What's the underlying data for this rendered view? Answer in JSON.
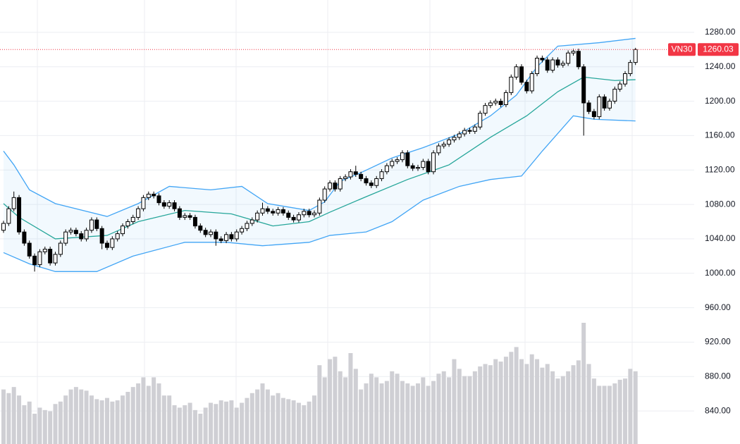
{
  "chart_data": {
    "type": "candlestick",
    "ylim": [
      801.6,
      1317.6
    ],
    "yticks": [
      {
        "value": 840,
        "label": "840.00"
      },
      {
        "value": 880,
        "label": "880.00"
      },
      {
        "value": 920,
        "label": "920.00"
      },
      {
        "value": 960,
        "label": "960.00"
      },
      {
        "value": 1000,
        "label": "1000.00"
      },
      {
        "value": 1040,
        "label": "1040.00"
      },
      {
        "value": 1080,
        "label": "1080.00"
      },
      {
        "value": 1120,
        "label": "1120.00"
      },
      {
        "value": 1160,
        "label": "1160.00"
      },
      {
        "value": 1200,
        "label": "1200.00"
      },
      {
        "value": 1240,
        "label": "1240.00"
      },
      {
        "value": 1280,
        "label": "1280.00"
      }
    ],
    "grid": true,
    "open": [
      1050,
      1058,
      1075,
      1088,
      1048,
      1035,
      1020,
      1010,
      1025,
      1028,
      1012,
      1022,
      1035,
      1048,
      1050,
      1046,
      1040,
      1050,
      1062,
      1052,
      1035,
      1030,
      1040,
      1046,
      1055,
      1060,
      1065,
      1075,
      1088,
      1092,
      1090,
      1082,
      1078,
      1082,
      1075,
      1065,
      1067,
      1065,
      1055,
      1050,
      1045,
      1048,
      1040,
      1038,
      1045,
      1040,
      1048,
      1052,
      1058,
      1062,
      1070,
      1075,
      1072,
      1070,
      1074,
      1070,
      1065,
      1062,
      1068,
      1072,
      1068,
      1070,
      1085,
      1098,
      1105,
      1098,
      1110,
      1112,
      1118,
      1115,
      1110,
      1105,
      1102,
      1110,
      1118,
      1125,
      1130,
      1132,
      1140,
      1125,
      1122,
      1123,
      1130,
      1118,
      1140,
      1148,
      1150,
      1155,
      1158,
      1162,
      1166,
      1165,
      1170,
      1186,
      1195,
      1198,
      1200,
      1196,
      1210,
      1228,
      1240,
      1222,
      1212,
      1232,
      1250,
      1248,
      1236,
      1248,
      1242,
      1244,
      1256,
      1258,
      1240,
      1198,
      1188,
      1182,
      1205,
      1192,
      1200,
      1214,
      1220,
      1232,
      1245
    ],
    "high": [
      1061,
      1078,
      1095,
      1091,
      1051,
      1038,
      1023,
      1028,
      1031,
      1031,
      1025,
      1038,
      1051,
      1053,
      1053,
      1049,
      1053,
      1065,
      1065,
      1055,
      1038,
      1043,
      1049,
      1058,
      1063,
      1068,
      1078,
      1091,
      1095,
      1095,
      1093,
      1085,
      1085,
      1085,
      1078,
      1070,
      1070,
      1068,
      1058,
      1053,
      1051,
      1051,
      1043,
      1048,
      1048,
      1051,
      1055,
      1061,
      1065,
      1073,
      1082,
      1078,
      1075,
      1077,
      1077,
      1073,
      1068,
      1071,
      1075,
      1075,
      1073,
      1088,
      1101,
      1108,
      1108,
      1113,
      1115,
      1121,
      1125,
      1118,
      1113,
      1108,
      1113,
      1121,
      1128,
      1133,
      1135,
      1143,
      1143,
      1128,
      1126,
      1133,
      1133,
      1143,
      1151,
      1153,
      1158,
      1161,
      1165,
      1169,
      1169,
      1173,
      1189,
      1198,
      1201,
      1203,
      1203,
      1213,
      1231,
      1243,
      1243,
      1225,
      1235,
      1253,
      1253,
      1251,
      1251,
      1251,
      1247,
      1259,
      1261,
      1261,
      1243,
      1201,
      1191,
      1208,
      1208,
      1203,
      1217,
      1223,
      1235,
      1248,
      1262
    ],
    "low": [
      1047,
      1055,
      1072,
      1045,
      1032,
      1017,
      1002,
      1007,
      1022,
      1009,
      1009,
      1019,
      1032,
      1045,
      1043,
      1037,
      1037,
      1047,
      1049,
      1028,
      1027,
      1027,
      1037,
      1043,
      1052,
      1057,
      1062,
      1072,
      1085,
      1087,
      1079,
      1075,
      1075,
      1072,
      1062,
      1062,
      1062,
      1052,
      1047,
      1042,
      1042,
      1032,
      1035,
      1035,
      1037,
      1037,
      1045,
      1049,
      1055,
      1059,
      1067,
      1069,
      1067,
      1067,
      1067,
      1062,
      1059,
      1059,
      1065,
      1065,
      1065,
      1067,
      1082,
      1095,
      1095,
      1095,
      1107,
      1109,
      1112,
      1107,
      1102,
      1099,
      1099,
      1107,
      1115,
      1122,
      1127,
      1129,
      1122,
      1119,
      1119,
      1120,
      1115,
      1115,
      1137,
      1145,
      1147,
      1152,
      1155,
      1159,
      1162,
      1162,
      1167,
      1183,
      1192,
      1195,
      1193,
      1193,
      1207,
      1225,
      1219,
      1209,
      1209,
      1229,
      1245,
      1233,
      1233,
      1239,
      1239,
      1241,
      1253,
      1237,
      1160,
      1185,
      1179,
      1179,
      1189,
      1189,
      1197,
      1211,
      1217,
      1229,
      1242
    ],
    "close": [
      1058,
      1075,
      1088,
      1048,
      1035,
      1020,
      1010,
      1025,
      1028,
      1012,
      1022,
      1035,
      1048,
      1050,
      1046,
      1040,
      1050,
      1062,
      1052,
      1035,
      1030,
      1040,
      1046,
      1055,
      1060,
      1065,
      1075,
      1088,
      1092,
      1090,
      1082,
      1078,
      1082,
      1075,
      1065,
      1067,
      1065,
      1055,
      1050,
      1045,
      1048,
      1040,
      1038,
      1045,
      1040,
      1048,
      1052,
      1058,
      1062,
      1070,
      1075,
      1072,
      1070,
      1074,
      1070,
      1065,
      1062,
      1068,
      1072,
      1068,
      1070,
      1085,
      1098,
      1105,
      1098,
      1110,
      1112,
      1118,
      1115,
      1110,
      1105,
      1102,
      1110,
      1118,
      1125,
      1130,
      1132,
      1140,
      1125,
      1122,
      1123,
      1130,
      1118,
      1140,
      1148,
      1150,
      1155,
      1158,
      1162,
      1166,
      1165,
      1170,
      1186,
      1195,
      1198,
      1200,
      1196,
      1210,
      1228,
      1240,
      1222,
      1212,
      1232,
      1250,
      1248,
      1236,
      1248,
      1242,
      1244,
      1256,
      1258,
      1240,
      1198,
      1188,
      1182,
      1205,
      1192,
      1200,
      1214,
      1220,
      1232,
      1245,
      1260.03
    ],
    "volume": [
      45,
      42,
      47,
      40,
      32,
      35,
      25,
      30,
      28,
      27,
      33,
      35,
      40,
      45,
      47,
      45,
      44,
      40,
      37,
      36,
      38,
      35,
      36,
      40,
      43,
      47,
      50,
      55,
      48,
      55,
      50,
      40,
      40,
      32,
      30,
      32,
      34,
      28,
      25,
      30,
      34,
      33,
      36,
      35,
      36,
      30,
      34,
      38,
      42,
      45,
      50,
      45,
      40,
      42,
      38,
      37,
      36,
      34,
      32,
      35,
      40,
      65,
      55,
      70,
      72,
      60,
      55,
      75,
      62,
      45,
      50,
      58,
      55,
      50,
      52,
      60,
      58,
      52,
      50,
      48,
      50,
      55,
      48,
      52,
      58,
      60,
      55,
      70,
      62,
      56,
      56,
      60,
      64,
      66,
      65,
      70,
      68,
      72,
      76,
      80,
      70,
      66,
      74,
      70,
      63,
      66,
      60,
      54,
      56,
      60,
      65,
      69,
      100,
      66,
      54,
      48,
      48,
      48,
      50,
      53,
      54,
      62,
      60
    ],
    "volume_color": "#cfcfd4",
    "up_color": "#ffffff",
    "down_color": "#000000",
    "bollinger": {
      "upper": {
        "color": "#42a5f5",
        "x": [
          0,
          2,
          5,
          10,
          20,
          26,
          32,
          40,
          46,
          51,
          59,
          62,
          65,
          69,
          75,
          81,
          88,
          94,
          99,
          103,
          107,
          115,
          122
        ],
        "values": [
          1142,
          1126,
          1097,
          1081,
          1066,
          1081,
          1101,
          1097,
          1101,
          1081,
          1073,
          1083,
          1107,
          1117,
          1134,
          1146,
          1162,
          1183,
          1207,
          1240,
          1264,
          1268,
          1273
        ]
      },
      "middle": {
        "color": "#26a69a",
        "x": [
          0,
          3,
          10,
          20,
          26,
          35,
          44,
          52,
          59,
          63,
          70,
          78,
          86,
          94,
          101,
          107,
          112,
          118,
          122
        ],
        "values": [
          1081,
          1065,
          1040,
          1044,
          1060,
          1073,
          1069,
          1055,
          1060,
          1071,
          1089,
          1109,
          1126,
          1158,
          1183,
          1211,
          1228,
          1224,
          1225
        ]
      },
      "lower": {
        "color": "#42a5f5",
        "x": [
          0,
          5,
          10,
          18,
          25,
          35,
          43,
          50,
          59,
          63,
          70,
          75,
          81,
          88,
          94,
          100,
          104,
          110,
          114,
          122
        ],
        "values": [
          1024,
          1011,
          1002,
          1002,
          1020,
          1036,
          1036,
          1032,
          1036,
          1044,
          1048,
          1060,
          1085,
          1101,
          1109,
          1113,
          1142,
          1183,
          1179,
          1177
        ]
      }
    },
    "last_price": {
      "symbol": "VN30",
      "value": 1260.03,
      "color": "#f23645"
    }
  }
}
